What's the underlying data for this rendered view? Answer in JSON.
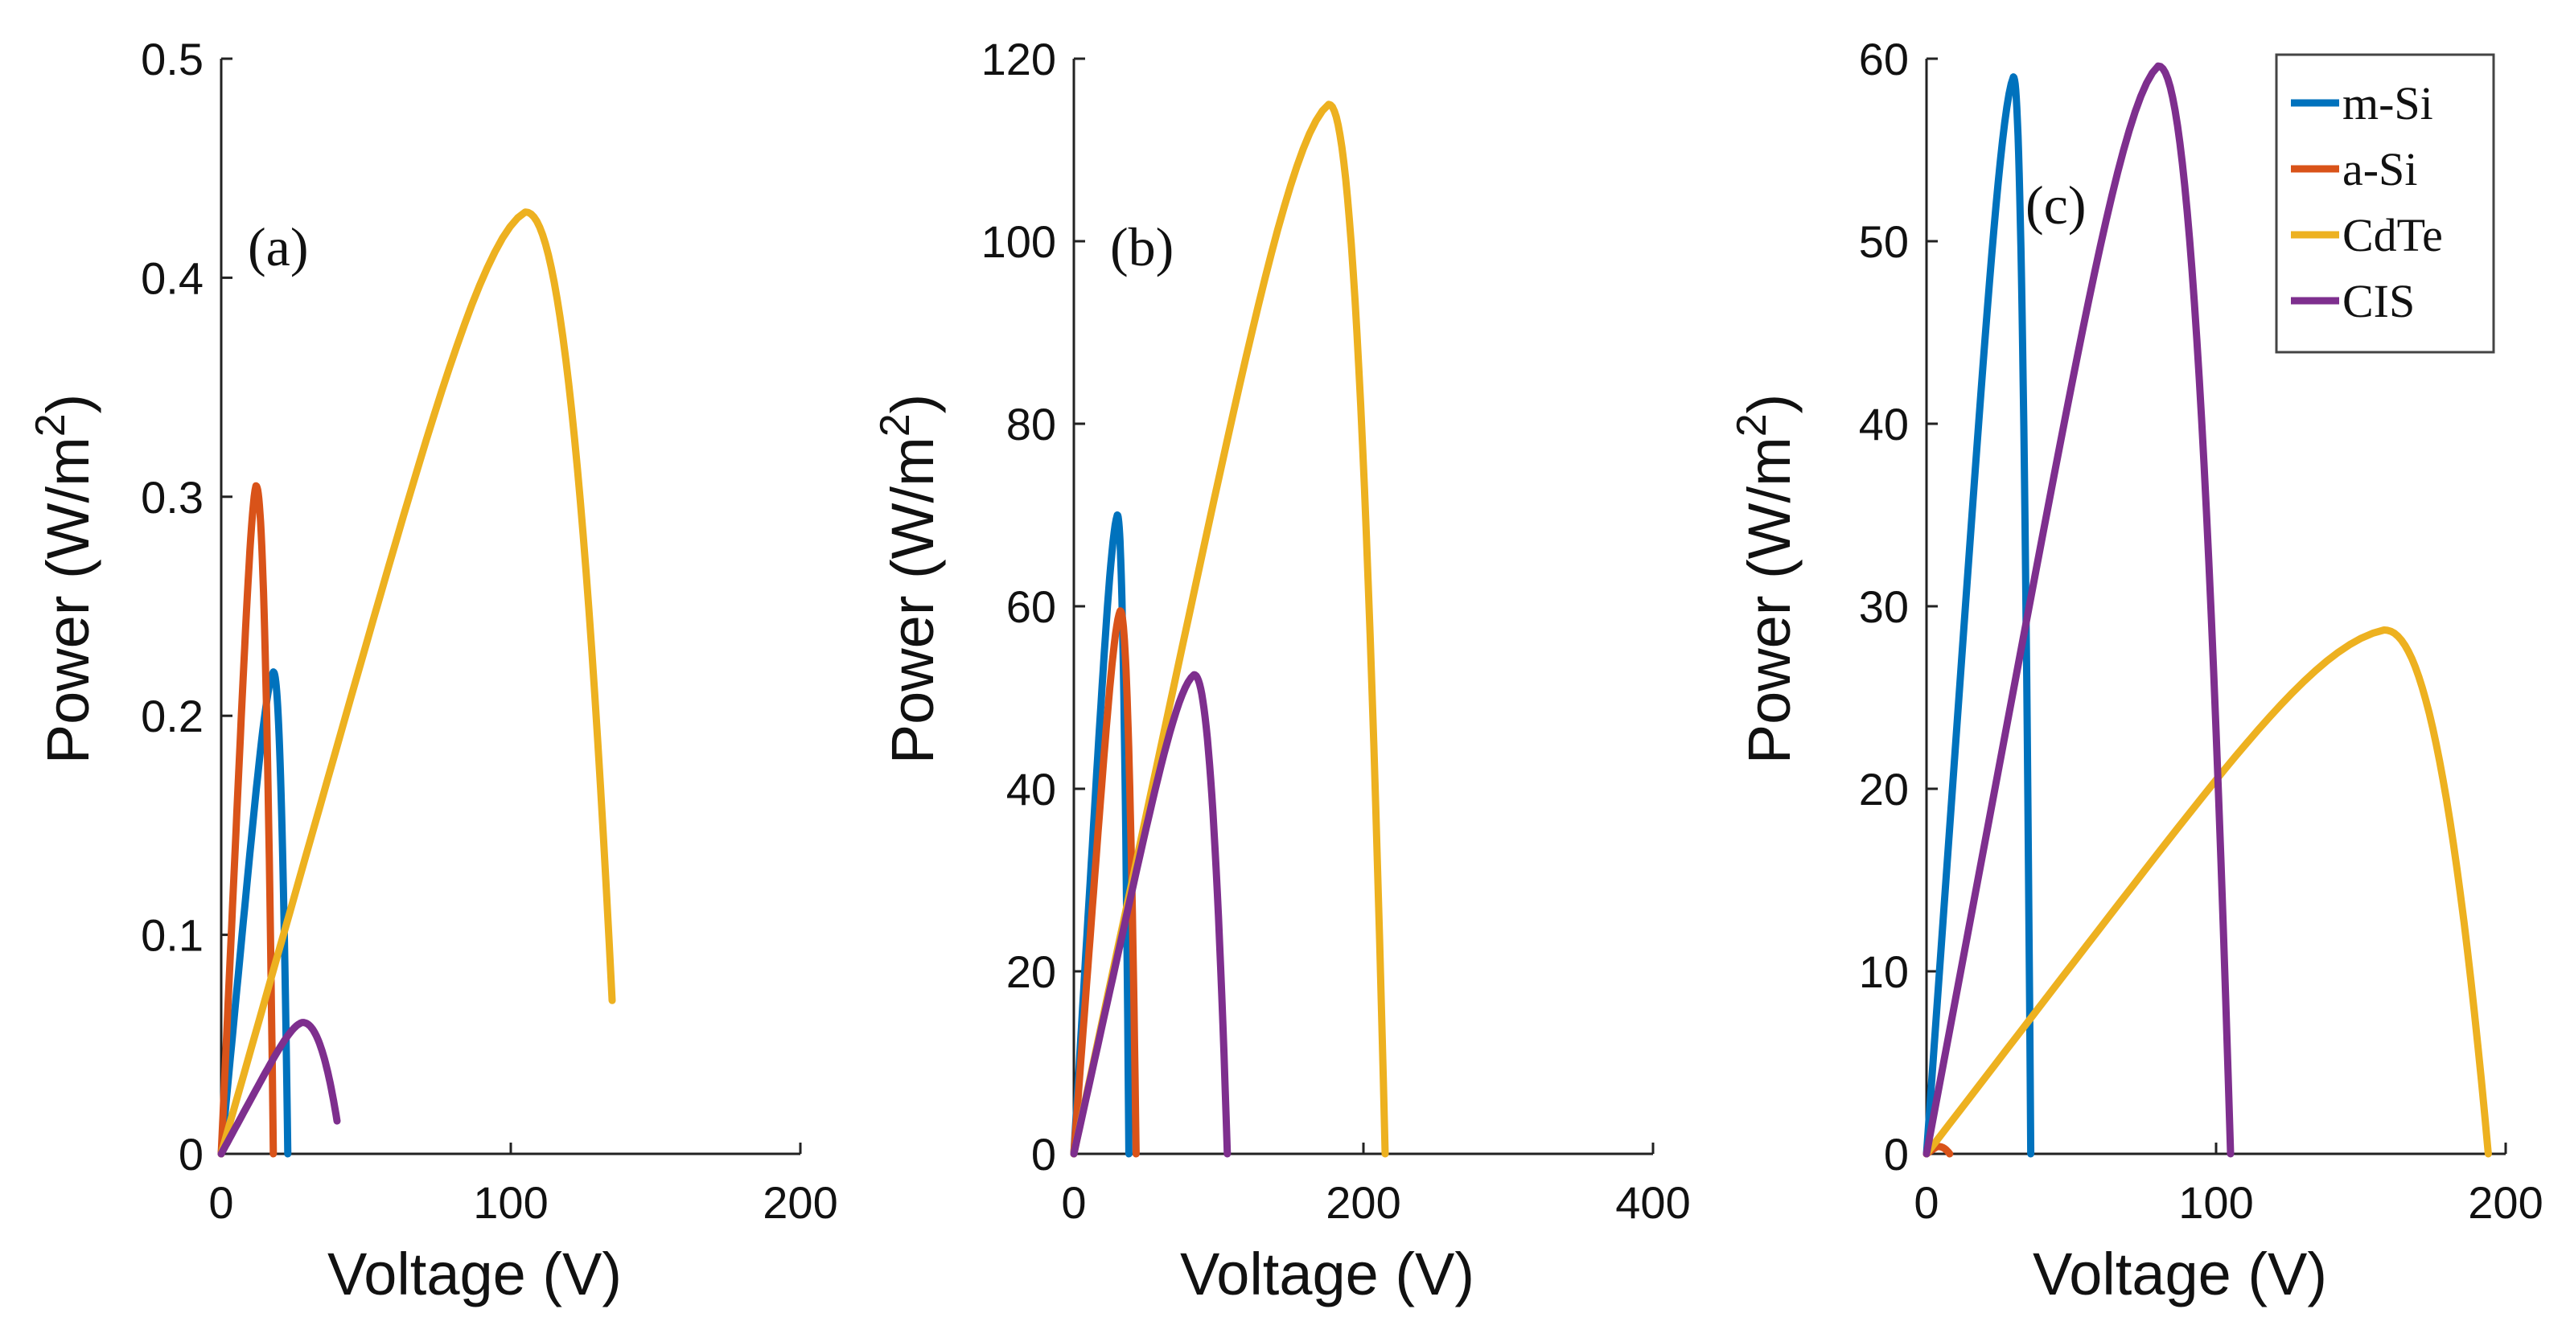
{
  "chart_data": [
    {
      "type": "line",
      "panel_label": "(a)",
      "xlabel": "Voltage (V)",
      "ylabel_main": "Power (W/m",
      "ylabel_sup": "2",
      "ylabel_end": ")",
      "xlim": [
        0,
        200
      ],
      "ylim": [
        0,
        0.5
      ],
      "xticks": [
        0,
        100,
        200
      ],
      "xtick_labels": [
        "0",
        "100",
        "200"
      ],
      "yticks": [
        0,
        0.1,
        0.2,
        0.3,
        0.4,
        0.5
      ],
      "ytick_labels": [
        "0",
        "0.1",
        "0.2",
        "0.3",
        "0.4",
        "0.5"
      ],
      "series": [
        {
          "name": "m-Si",
          "color": "#0072BD",
          "vmp": 18,
          "pmp": 0.22,
          "voc": 23,
          "p_end": 0
        },
        {
          "name": "a-Si",
          "color": "#D95319",
          "vmp": 12,
          "pmp": 0.305,
          "voc": 18,
          "p_end": 0
        },
        {
          "name": "CdTe",
          "color": "#EDB120",
          "vmp": 105,
          "pmp": 0.43,
          "voc": 135,
          "p_end": 0.07
        },
        {
          "name": "CIS",
          "color": "#7E2F8E",
          "vmp": 28,
          "pmp": 0.06,
          "voc": 40,
          "p_end": 0.015
        }
      ]
    },
    {
      "type": "line",
      "panel_label": "(b)",
      "xlabel": "Voltage (V)",
      "ylabel_main": "Power (W/m",
      "ylabel_sup": "2",
      "ylabel_end": ")",
      "xlim": [
        0,
        400
      ],
      "ylim": [
        0,
        120
      ],
      "xticks": [
        0,
        200,
        400
      ],
      "xtick_labels": [
        "0",
        "200",
        "400"
      ],
      "yticks": [
        0,
        20,
        40,
        60,
        80,
        100,
        120
      ],
      "ytick_labels": [
        "0",
        "20",
        "40",
        "60",
        "80",
        "100",
        "120"
      ],
      "series": [
        {
          "name": "m-Si",
          "color": "#0072BD",
          "vmp": 30,
          "pmp": 70,
          "voc": 38,
          "p_end": 0
        },
        {
          "name": "a-Si",
          "color": "#D95319",
          "vmp": 32,
          "pmp": 59.5,
          "voc": 43,
          "p_end": 0
        },
        {
          "name": "CdTe",
          "color": "#EDB120",
          "vmp": 176,
          "pmp": 115,
          "voc": 215,
          "p_end": 0
        },
        {
          "name": "CIS",
          "color": "#7E2F8E",
          "vmp": 83,
          "pmp": 52.5,
          "voc": 106,
          "p_end": 0
        }
      ]
    },
    {
      "type": "line",
      "panel_label": "(c)",
      "xlabel": "Voltage (V)",
      "ylabel_main": "Power (W/m",
      "ylabel_sup": "2",
      "ylabel_end": ")",
      "xlim": [
        0,
        200
      ],
      "ylim": [
        0,
        60
      ],
      "xticks": [
        0,
        100,
        200
      ],
      "xtick_labels": [
        "0",
        "100",
        "200"
      ],
      "yticks": [
        0,
        10,
        20,
        30,
        40,
        50,
        60
      ],
      "ytick_labels": [
        "0",
        "10",
        "20",
        "30",
        "40",
        "50",
        "60"
      ],
      "legend_position": "top-right",
      "legend": [
        "m-Si",
        "a-Si",
        "CdTe",
        "CIS"
      ],
      "series": [
        {
          "name": "m-Si",
          "color": "#0072BD",
          "vmp": 30,
          "pmp": 59,
          "voc": 36,
          "p_end": 0
        },
        {
          "name": "a-Si",
          "color": "#D95319",
          "vmp": 4,
          "pmp": 0.4,
          "voc": 8,
          "p_end": 0
        },
        {
          "name": "CdTe",
          "color": "#EDB120",
          "vmp": 158,
          "pmp": 28.7,
          "voc": 194,
          "p_end": 0
        },
        {
          "name": "CIS",
          "color": "#7E2F8E",
          "vmp": 80,
          "pmp": 59.6,
          "voc": 105,
          "p_end": 0
        }
      ]
    }
  ]
}
